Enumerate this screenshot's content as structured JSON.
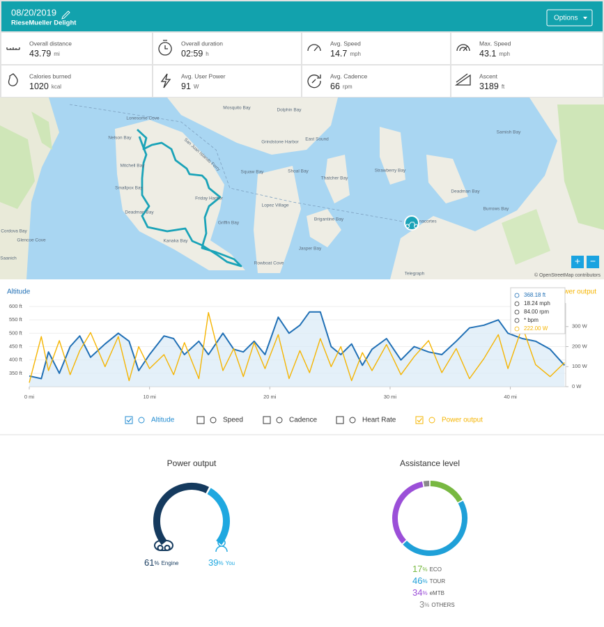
{
  "header": {
    "date": "08/20/2019",
    "bike": "RieseMueller Delight",
    "options_button": "Options"
  },
  "stats": [
    {
      "label": "Overall distance",
      "value": "43.79",
      "unit": "mi"
    },
    {
      "label": "Overall duration",
      "value": "02:59",
      "unit": "h"
    },
    {
      "label": "Avg. Speed",
      "value": "14.7",
      "unit": "mph"
    },
    {
      "label": "Max. Speed",
      "value": "43.1",
      "unit": "mph"
    },
    {
      "label": "Calories burned",
      "value": "1020",
      "unit": "kcal"
    },
    {
      "label": "Avg. User Power",
      "value": "91",
      "unit": "W"
    },
    {
      "label": "Avg. Cadence",
      "value": "66",
      "unit": "rpm"
    },
    {
      "label": "Ascent",
      "value": "3189",
      "unit": "ft"
    }
  ],
  "map": {
    "labels": [
      "Lonesome Cove",
      "Mosquito Bay",
      "Dolphin Bay",
      "Nelson Bay",
      "Mitchell Bay",
      "Grindstone Harbor",
      "East Sound",
      "Squaw Bay",
      "Shoal Bay",
      "Thatcher Bay",
      "Smallpox Bay",
      "Friday Harbor",
      "Lopez Village",
      "Deadman Bay",
      "Griffin Bay",
      "Brigantine Bay",
      "Kanaka Bay",
      "Jasper Bay",
      "Rowboat Cove",
      "Strawberry Bay",
      "Deadman Bay",
      "Burrows Bay",
      "Anacortes",
      "Samish Bay",
      "Cordova Bay",
      "Glencoe Cove",
      "Saanich",
      "Telegraph",
      "San Juan Islands Ferry"
    ],
    "attribution": "© OpenStreetMap contributors",
    "zoom_in": "+",
    "zoom_out": "−"
  },
  "chart_data": {
    "type": "line",
    "y_label": "Altitude",
    "y2_label": "Power output",
    "x": [
      0,
      1.0,
      1.6,
      2.5,
      3.4,
      4.2,
      5.1,
      6.3,
      7.4,
      8.3,
      9.1,
      10.0,
      11.2,
      12.0,
      12.9,
      14.1,
      14.9,
      16.1,
      17.0,
      17.8,
      18.7,
      19.6,
      20.7,
      21.6,
      22.5,
      23.3,
      24.2,
      25.1,
      25.9,
      26.8,
      27.7,
      28.5,
      29.7,
      30.9,
      32.0,
      33.2,
      34.3,
      35.5,
      36.6,
      37.8,
      39.0,
      39.8,
      41.0,
      42.1,
      43.3,
      44.5
    ],
    "xlim": [
      0,
      44.6
    ],
    "xticks": [
      {
        "value": 0,
        "label": "0 mi"
      },
      {
        "value": 10,
        "label": "10 mi"
      },
      {
        "value": 20,
        "label": "20 mi"
      },
      {
        "value": 30,
        "label": "30 mi"
      },
      {
        "value": 40,
        "label": "40 mi"
      }
    ],
    "ylim": [
      300,
      600
    ],
    "yticks": [
      {
        "value": 350,
        "label": "350 ft"
      },
      {
        "value": 400,
        "label": "400 ft"
      },
      {
        "value": 450,
        "label": "450 ft"
      },
      {
        "value": 500,
        "label": "500 ft"
      },
      {
        "value": 550,
        "label": "550 ft"
      },
      {
        "value": 600,
        "label": "600 ft"
      }
    ],
    "y2lim": [
      0,
      400
    ],
    "y2ticks": [
      {
        "value": 0,
        "label": "0 W"
      },
      {
        "value": 100,
        "label": "100 W"
      },
      {
        "value": 200,
        "label": "200 W"
      },
      {
        "value": 300,
        "label": "300 W"
      }
    ],
    "grid": true,
    "series": [
      {
        "name": "Altitude",
        "color": "#1f6fb5",
        "values": [
          340,
          330,
          430,
          350,
          450,
          490,
          410,
          460,
          500,
          470,
          360,
          420,
          490,
          480,
          420,
          470,
          420,
          500,
          440,
          430,
          470,
          420,
          560,
          500,
          530,
          580,
          580,
          450,
          420,
          460,
          380,
          440,
          480,
          400,
          450,
          430,
          420,
          470,
          520,
          530,
          550,
          500,
          480,
          470,
          440,
          380
        ]
      },
      {
        "name": "Power output",
        "color": "#f5b400",
        "axis": "y2",
        "values": [
          20,
          250,
          80,
          230,
          60,
          180,
          270,
          100,
          250,
          30,
          200,
          90,
          160,
          60,
          220,
          40,
          370,
          80,
          190,
          50,
          220,
          90,
          260,
          40,
          180,
          70,
          240,
          100,
          200,
          30,
          170,
          80,
          210,
          60,
          150,
          230,
          70,
          190,
          40,
          140,
          260,
          90,
          300,
          110,
          50,
          120
        ]
      }
    ],
    "tooltip": [
      "368.18 ft",
      "18.24 mph",
      "84.00 rpm",
      "* bpm",
      "222.00 W"
    ],
    "legend": [
      {
        "label": "Altitude",
        "checked": true,
        "color": "#1f8ad0"
      },
      {
        "label": "Speed",
        "checked": false,
        "color": "#333333"
      },
      {
        "label": "Cadence",
        "checked": false,
        "color": "#333333"
      },
      {
        "label": "Heart Rate",
        "checked": false,
        "color": "#333333"
      },
      {
        "label": "Power output",
        "checked": true,
        "color": "#f5b400"
      }
    ]
  },
  "power_share": {
    "title": "Power output",
    "unit": "%",
    "segments": [
      {
        "label": "Engine",
        "value": 61,
        "color": "#153a5e"
      },
      {
        "label": "You",
        "value": 39,
        "color": "#1fa8e0"
      }
    ]
  },
  "assistance": {
    "title": "Assistance level",
    "unit": "%",
    "segments": [
      {
        "label": "ECO",
        "value": 17,
        "color": "#78b841"
      },
      {
        "label": "TOUR",
        "value": 46,
        "color": "#1fa0d8"
      },
      {
        "label": "eMTB",
        "value": 34,
        "color": "#9b4fd8"
      },
      {
        "label": "OTHERS",
        "value": 3,
        "color": "#8a8a8a"
      }
    ]
  }
}
